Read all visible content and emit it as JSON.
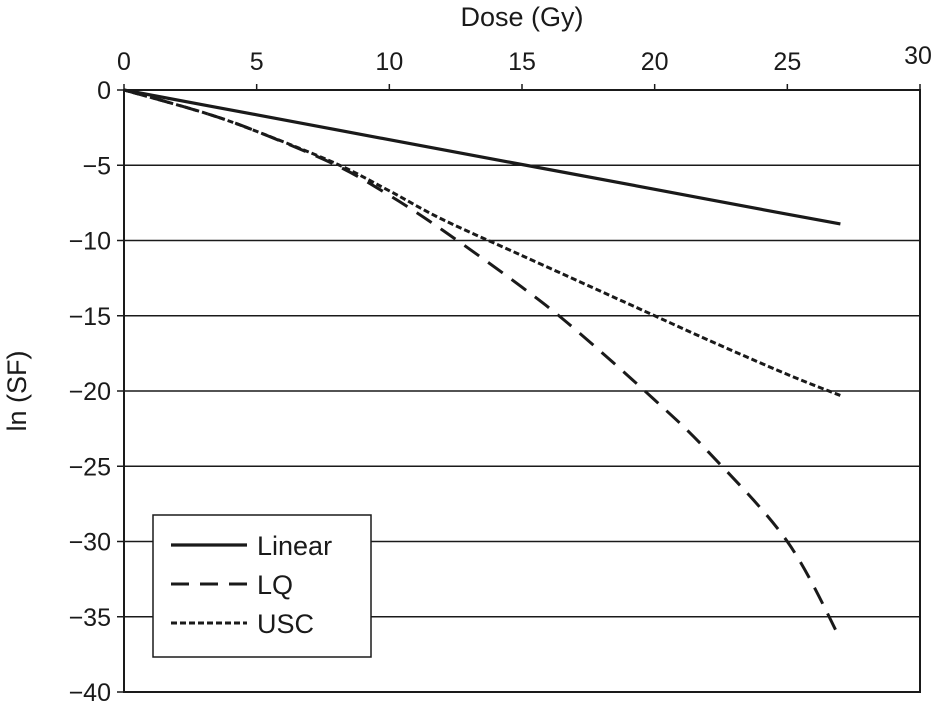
{
  "chart_data": {
    "type": "line",
    "title": "",
    "xlabel": "Dose (Gy)",
    "ylabel": "ln (SF)",
    "xlim": [
      0,
      30
    ],
    "ylim": [
      -40,
      0
    ],
    "x_ticks": [
      "0",
      "5",
      "10",
      "15",
      "20",
      "25",
      "30"
    ],
    "y_ticks": [
      "0",
      "−5",
      "−10",
      "−15",
      "−20",
      "−25",
      "−30",
      "−35",
      "−40"
    ],
    "x_axis_position": "top",
    "grid": "horizontal",
    "legend_position": "bottom-left",
    "series": [
      {
        "name": "Linear",
        "style": "solid",
        "x": [
          0,
          5,
          10,
          15,
          20,
          25,
          27
        ],
        "y": [
          0,
          -1.65,
          -3.3,
          -4.95,
          -6.6,
          -8.25,
          -8.9
        ]
      },
      {
        "name": "LQ",
        "style": "dashed",
        "x": [
          0,
          3,
          5,
          8,
          10,
          12,
          15,
          17,
          20,
          22,
          25,
          27
        ],
        "y": [
          0,
          -1.5,
          -2.75,
          -5.0,
          -7.0,
          -9.3,
          -13.1,
          -15.9,
          -20.6,
          -24.0,
          -30.0,
          -36.5
        ]
      },
      {
        "name": "USC",
        "style": "dotted",
        "x": [
          0,
          3,
          5,
          8,
          10,
          12,
          15,
          18,
          20,
          22,
          25,
          27
        ],
        "y": [
          0,
          -1.5,
          -2.75,
          -4.9,
          -6.7,
          -8.6,
          -11.0,
          -13.4,
          -15.0,
          -16.6,
          -18.9,
          -20.3
        ]
      }
    ]
  }
}
